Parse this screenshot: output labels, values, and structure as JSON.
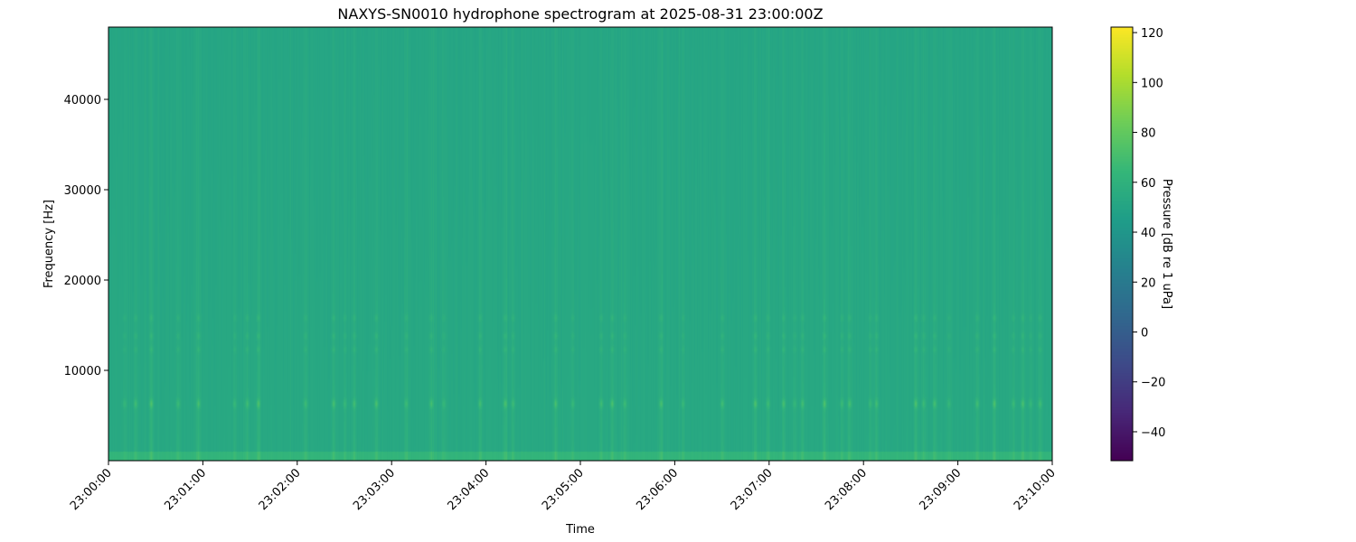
{
  "chart_data": {
    "type": "heatmap",
    "title": "NAXYS-SN0010 hydrophone spectrogram at 2025-08-31 23:00:00Z",
    "xlabel": "Time",
    "ylabel": "Frequency [Hz]",
    "colorbar_label": "Pressure [dB re 1 uPa]",
    "colormap": "viridis",
    "xlim": [
      "23:00:00",
      "23:10:00"
    ],
    "ylim": [
      0,
      48000
    ],
    "clim": [
      -51.6,
      122.2
    ],
    "x_ticks": [
      "23:00:00",
      "23:01:00",
      "23:02:00",
      "23:03:00",
      "23:04:00",
      "23:05:00",
      "23:06:00",
      "23:07:00",
      "23:08:00",
      "23:09:00",
      "23:10:00"
    ],
    "y_ticks": [
      10000,
      20000,
      30000,
      40000
    ],
    "y_tick_labels": [
      "10000",
      "20000",
      "30000",
      "40000"
    ],
    "colorbar_ticks": [
      -40,
      -20,
      0,
      20,
      40,
      60,
      80,
      100,
      120
    ],
    "colorbar_tick_labels": [
      "−40",
      "−20",
      "0",
      "20",
      "40",
      "60",
      "80",
      "100",
      "120"
    ],
    "background_level_db": 53,
    "low_frequency_band_db": 62,
    "tonal_band_frequencies_hz": [
      6300,
      12300,
      13800,
      15800
    ],
    "transient_events": [
      "23:00:10",
      "23:00:17",
      "23:00:27",
      "23:00:44",
      "23:00:57",
      "23:01:20",
      "23:01:28",
      "23:01:35",
      "23:02:05",
      "23:02:23",
      "23:02:30",
      "23:02:36",
      "23:02:50",
      "23:03:09",
      "23:03:25",
      "23:03:33",
      "23:03:56",
      "23:04:12",
      "23:04:17",
      "23:04:44",
      "23:04:55",
      "23:05:13",
      "23:05:20",
      "23:05:28",
      "23:05:51",
      "23:06:05",
      "23:06:30",
      "23:06:51",
      "23:06:59",
      "23:07:09",
      "23:07:16",
      "23:07:21",
      "23:07:35",
      "23:07:46",
      "23:07:51",
      "23:08:04",
      "23:08:08",
      "23:08:33",
      "23:08:38",
      "23:08:45",
      "23:08:54",
      "23:09:12",
      "23:09:23",
      "23:09:35",
      "23:09:41",
      "23:09:46",
      "23:09:52"
    ],
    "grid": false
  }
}
